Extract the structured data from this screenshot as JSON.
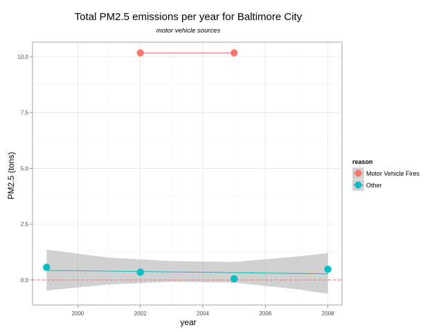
{
  "chart_data": {
    "type": "scatter",
    "title": "Total PM2.5 emissions per year for Baltimore City",
    "subtitle": "motor vehicle sources",
    "xlabel": "year",
    "ylabel": "PM2.5 (tons)",
    "xlim": [
      1998.55,
      2008.45
    ],
    "ylim": [
      -1.12,
      10.65
    ],
    "x_ticks": [
      2000,
      2002,
      2004,
      2006,
      2008
    ],
    "y_ticks": [
      0.0,
      2.5,
      5.0,
      7.5,
      10.0
    ],
    "y_tick_labels": [
      "0.0",
      "2.5",
      "5.0",
      "7.5",
      "10.0"
    ],
    "grid": true,
    "legend": {
      "title": "reason",
      "position": "right",
      "entries": [
        "Motor Vehicle Fires",
        "Other"
      ]
    },
    "series": [
      {
        "name": "Motor Vehicle Fires",
        "color": "#F8766D",
        "x": [
          2002,
          2005
        ],
        "y": [
          10.17,
          10.17
        ],
        "fit": {
          "x": [
            2002,
            2005
          ],
          "y": [
            10.17,
            10.17
          ],
          "band": false
        }
      },
      {
        "name": "Other",
        "color": "#00BFC4",
        "x": [
          1999,
          2002,
          2005,
          2008
        ],
        "y": [
          0.57,
          0.35,
          0.05,
          0.48
        ],
        "fit": {
          "x": [
            1999,
            2008
          ],
          "y": [
            0.43,
            0.28
          ],
          "band": true,
          "band_x": [
            1999,
            2001,
            2003,
            2005,
            2007,
            2008
          ],
          "band_lower": [
            -0.47,
            -0.2,
            -0.08,
            -0.12,
            -0.41,
            -0.62
          ],
          "band_upper": [
            1.36,
            1.0,
            0.85,
            0.81,
            1.05,
            1.21
          ]
        }
      }
    ],
    "reference_line": {
      "y": 0,
      "style": "dashed",
      "color": "#F8766D"
    },
    "band_color": "#999999"
  }
}
